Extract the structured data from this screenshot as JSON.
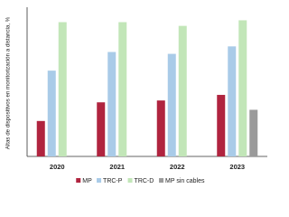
{
  "chart_data": {
    "type": "bar",
    "y_label": "Altas de dispositivos en monitorización a distancia, %",
    "categories": [
      "2020",
      "2021",
      "2022",
      "2023"
    ],
    "series": [
      {
        "name": "MP",
        "color": "#b0243f",
        "values": [
          19,
          29,
          30,
          33
        ]
      },
      {
        "name": "TRC-P",
        "color": "#a9cbe8",
        "values": [
          46,
          56,
          55,
          59
        ]
      },
      {
        "name": "TRC-D",
        "color": "#c2e6b8",
        "values": [
          72,
          72,
          70,
          73
        ]
      },
      {
        "name": "MP sin cables",
        "color": "#9a9a9a",
        "values": [
          null,
          null,
          null,
          25
        ]
      }
    ],
    "ylim": [
      0,
      80
    ],
    "legend": "bottom"
  }
}
